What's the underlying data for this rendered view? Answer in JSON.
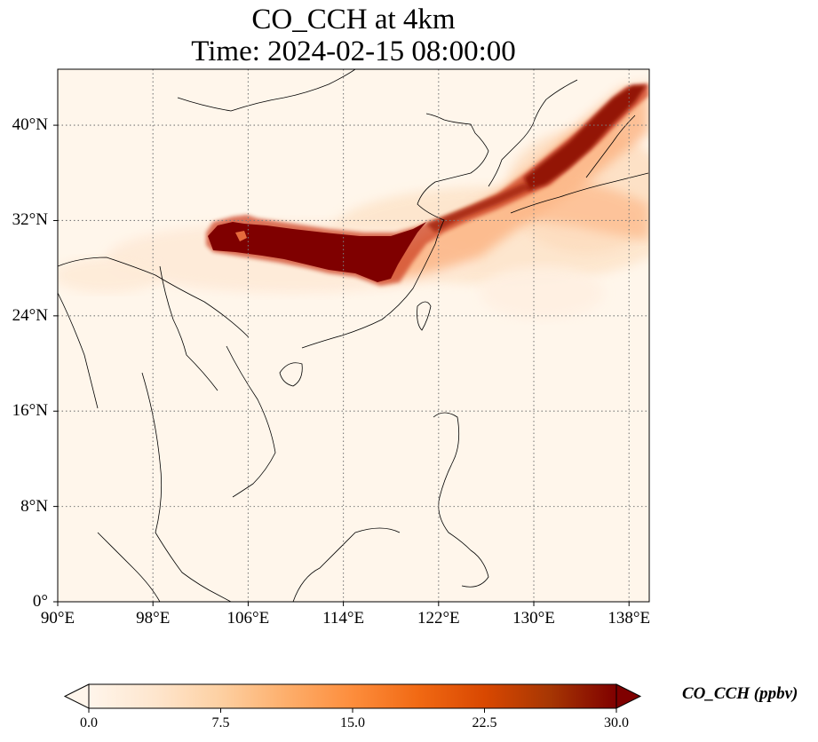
{
  "title": {
    "line1": "CO_CCH at 4km",
    "line2": "Time: 2024-02-15 08:00:00"
  },
  "map": {
    "variable": "CO_CCH",
    "level": "4km",
    "time": "2024-02-15 08:00:00",
    "extent": {
      "lon_min": 90,
      "lon_max": 139.7,
      "lat_min": 0,
      "lat_max": 44.7
    },
    "lon_ticks": [
      {
        "value": 90,
        "label": "90°E"
      },
      {
        "value": 98,
        "label": "98°E"
      },
      {
        "value": 106,
        "label": "106°E"
      },
      {
        "value": 114,
        "label": "114°E"
      },
      {
        "value": 122,
        "label": "122°E"
      },
      {
        "value": 130,
        "label": "130°E"
      },
      {
        "value": 138,
        "label": "138°E"
      }
    ],
    "lat_ticks": [
      {
        "value": 0,
        "label": "0°"
      },
      {
        "value": 8,
        "label": "8°N"
      },
      {
        "value": 16,
        "label": "16°N"
      },
      {
        "value": 24,
        "label": "24°N"
      },
      {
        "value": 32,
        "label": "32°N"
      },
      {
        "value": 40,
        "label": "40°N"
      }
    ],
    "gridlines": "dotted"
  },
  "colorbar": {
    "label": "CO_CCH (ppbv)",
    "min": 0.0,
    "max": 30.0,
    "extend": "both",
    "ticks": [
      "0.0",
      "7.5",
      "15.0",
      "22.5",
      "30.0"
    ],
    "colormap": [
      "#fff5eb",
      "#fee6ce",
      "#fdd0a2",
      "#fdae6b",
      "#fd8d3c",
      "#f16913",
      "#d94801",
      "#a63603",
      "#7f0000"
    ]
  }
}
